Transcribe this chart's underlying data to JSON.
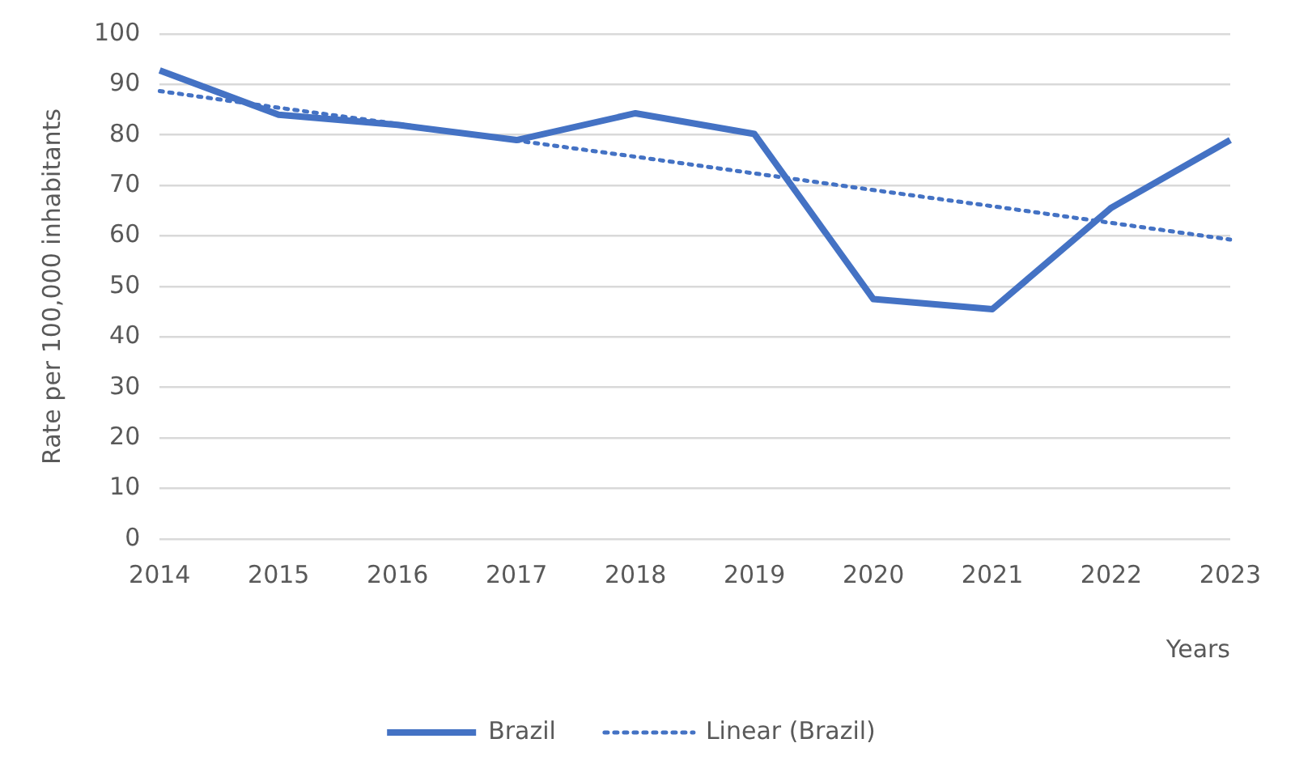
{
  "chart_data": {
    "type": "line",
    "xlabel": "Years",
    "ylabel": "Rate per 100,000 inhabitants",
    "categories": [
      "2014",
      "2015",
      "2016",
      "2017",
      "2018",
      "2019",
      "2020",
      "2021",
      "2022",
      "2023"
    ],
    "series": [
      {
        "name": "Brazil",
        "color": "#4472c4",
        "values": [
          92.8,
          84,
          82,
          79,
          84.3,
          80.2,
          47.5,
          45.5,
          65.6,
          79
        ],
        "line_style": "solid"
      },
      {
        "name": "Linear (Brazil)",
        "color": "#4472c4",
        "values": [
          88.7,
          85.4,
          82.2,
          78.9,
          75.7,
          72.4,
          69.1,
          65.9,
          62.6,
          59.3
        ],
        "line_style": "dotted"
      }
    ],
    "ylim": [
      0,
      100
    ],
    "yticks": [
      0,
      10,
      20,
      30,
      40,
      50,
      60,
      70,
      80,
      90,
      100
    ],
    "grid": "y",
    "legend": "bottom",
    "marker": "none"
  }
}
